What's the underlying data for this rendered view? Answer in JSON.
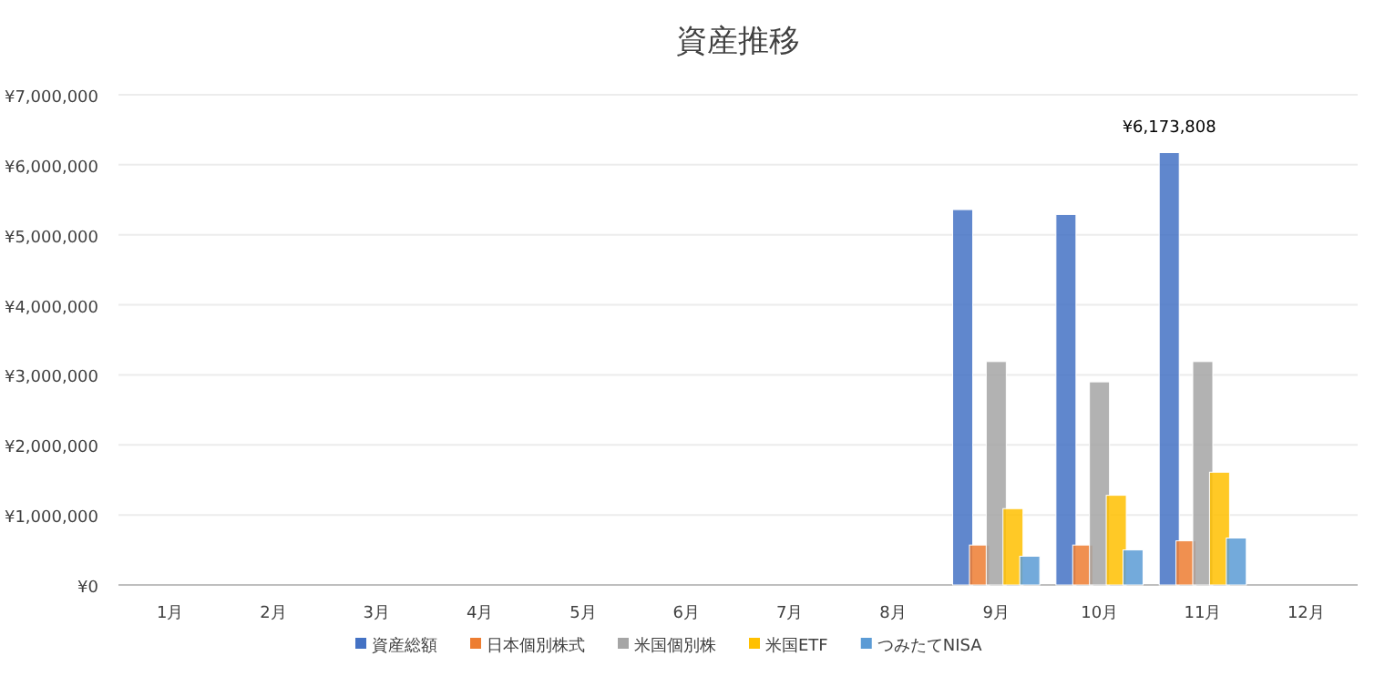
{
  "chart_data": {
    "type": "bar",
    "title": "資産推移",
    "categories": [
      "1月",
      "2月",
      "3月",
      "4月",
      "5月",
      "6月",
      "7月",
      "8月",
      "9月",
      "10月",
      "11月",
      "12月"
    ],
    "series": [
      {
        "name": "資産総額",
        "color": "#4472c4",
        "values": [
          null,
          null,
          null,
          null,
          null,
          null,
          null,
          null,
          5360000,
          5290000,
          6173808,
          null
        ],
        "value_labels": [
          null,
          null,
          null,
          null,
          null,
          null,
          null,
          null,
          null,
          null,
          "¥6,173,808",
          null
        ]
      },
      {
        "name": "日本個別株式",
        "color": "#ed7d31",
        "values": [
          null,
          null,
          null,
          null,
          null,
          null,
          null,
          null,
          570000,
          570000,
          630000,
          null
        ]
      },
      {
        "name": "米国個別株",
        "color": "#a5a5a5",
        "values": [
          null,
          null,
          null,
          null,
          null,
          null,
          null,
          null,
          3190000,
          2900000,
          3190000,
          null
        ]
      },
      {
        "name": "米国ETF",
        "color": "#ffc000",
        "values": [
          null,
          null,
          null,
          null,
          null,
          null,
          null,
          null,
          1090000,
          1280000,
          1610000,
          null
        ]
      },
      {
        "name": "つみたてNISA",
        "color": "#5b9bd5",
        "values": [
          null,
          null,
          null,
          null,
          null,
          null,
          null,
          null,
          410000,
          500000,
          670000,
          null
        ]
      }
    ],
    "ylim": [
      0,
      7000000
    ],
    "yticks": [
      {
        "value": 0,
        "label": "¥0"
      },
      {
        "value": 1000000,
        "label": "¥1,000,000"
      },
      {
        "value": 2000000,
        "label": "¥2,000,000"
      },
      {
        "value": 3000000,
        "label": "¥3,000,000"
      },
      {
        "value": 4000000,
        "label": "¥4,000,000"
      },
      {
        "value": 5000000,
        "label": "¥5,000,000"
      },
      {
        "value": 6000000,
        "label": "¥6,000,000"
      },
      {
        "value": 7000000,
        "label": "¥7,000,000"
      }
    ],
    "grid": "y",
    "legend": "bottom"
  }
}
